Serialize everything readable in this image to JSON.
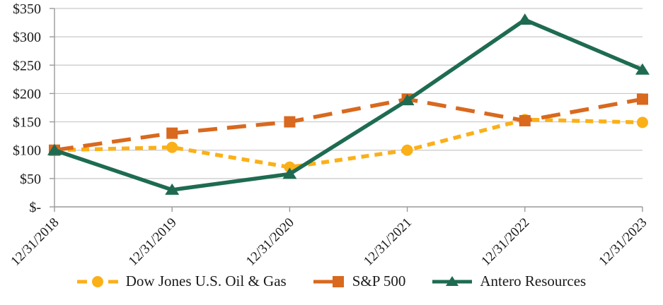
{
  "chart_data": {
    "type": "line",
    "title": "",
    "xlabel": "",
    "ylabel": "",
    "x_categories": [
      "12/31/2018",
      "12/31/2019",
      "12/31/2020",
      "12/31/2021",
      "12/31/2022",
      "12/31/2023"
    ],
    "series": [
      {
        "name": "Dow Jones U.S. Oil & Gas",
        "values": [
          100,
          105,
          70,
          100,
          154,
          149
        ],
        "color": "#FBB018",
        "line_style": "dashed-short",
        "marker": "circle"
      },
      {
        "name": "S&P 500",
        "values": [
          100,
          130,
          150,
          190,
          152,
          190
        ],
        "color": "#D8691E",
        "line_style": "dashed-long",
        "marker": "square"
      },
      {
        "name": "Antero Resources",
        "values": [
          100,
          30,
          58,
          188,
          330,
          242
        ],
        "color": "#1E6B52",
        "line_style": "solid",
        "marker": "triangle"
      }
    ],
    "ylim": [
      0,
      350
    ],
    "ytick_interval": 50,
    "ytick_labels": [
      "$-",
      "$50",
      "$100",
      "$150",
      "$200",
      "$250",
      "$300",
      "$350"
    ],
    "grid": "horizontal",
    "legend_position": "bottom",
    "grid_color": "#C9C9C9",
    "axis_color": "#9A9A9A",
    "text_color": "#1A1A1A"
  }
}
